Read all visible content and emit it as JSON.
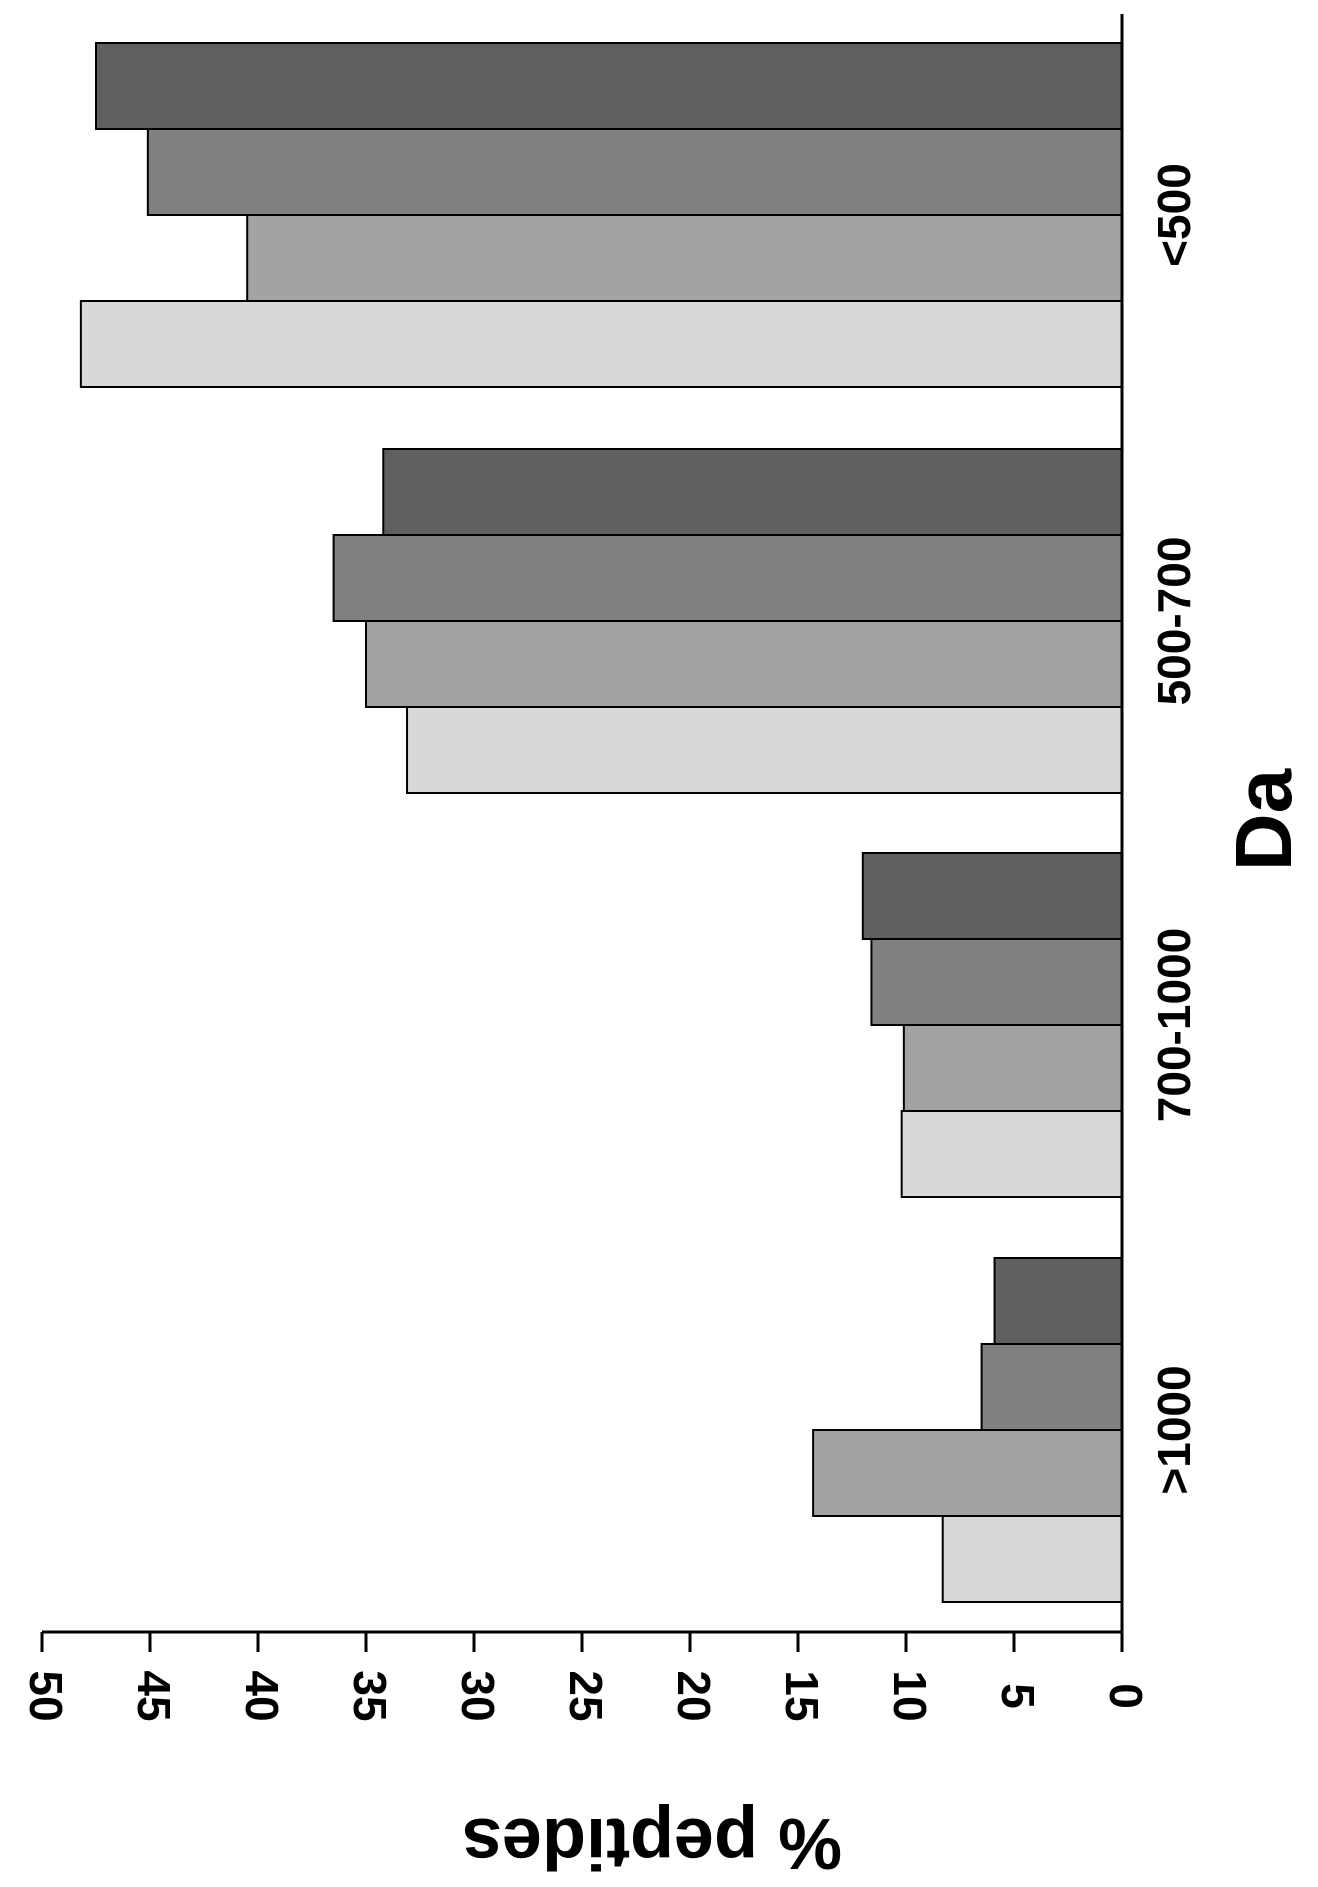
{
  "chart_data": {
    "type": "bar",
    "orientation": "horizontal-rotated",
    "title": "",
    "xlabel": "Da",
    "ylabel": "% peptides",
    "categories": [
      ">1000",
      "700-1000",
      "500-700",
      "<500"
    ],
    "series": [
      {
        "color": "#d8d8d8",
        "values": [
          8.3,
          10.2,
          33.1,
          48.2
        ]
      },
      {
        "color": "#a3a3a3",
        "values": [
          14.3,
          10.1,
          35.0,
          40.5
        ]
      },
      {
        "color": "#808080",
        "values": [
          6.5,
          11.6,
          36.5,
          45.1
        ]
      },
      {
        "color": "#606060",
        "values": [
          5.9,
          12.0,
          34.2,
          47.5
        ]
      }
    ],
    "ylim": [
      0,
      50
    ],
    "yticks": [
      0,
      5,
      10,
      15,
      20,
      25,
      30,
      35,
      40,
      45,
      50
    ],
    "grid": false,
    "legend": "none"
  }
}
